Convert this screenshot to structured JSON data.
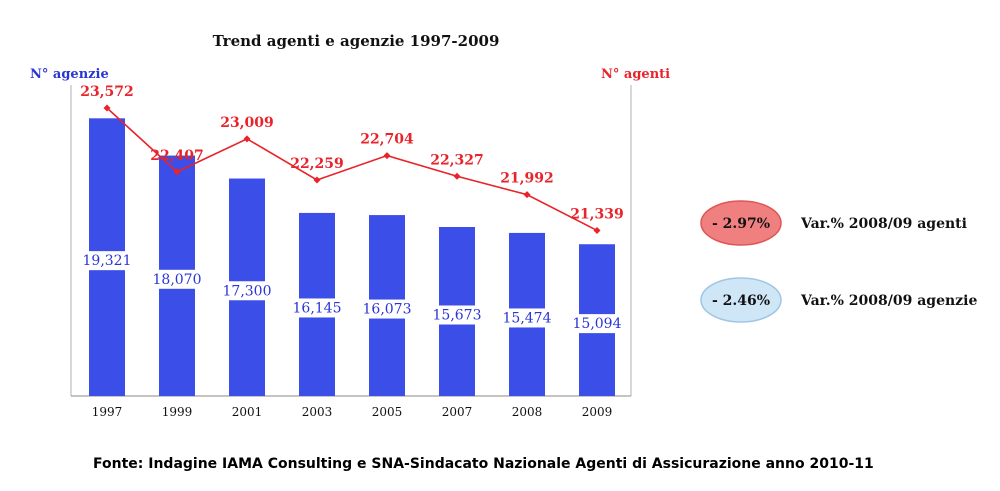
{
  "chart_data": {
    "type": "bar",
    "title": "Trend agenti e agenzie 1997-2009",
    "ylabel_left": "N° agenzie",
    "ylabel_right": "N° agenti",
    "categories": [
      "1997",
      "1999",
      "2001",
      "2003",
      "2005",
      "2007",
      "2008",
      "2009"
    ],
    "series": [
      {
        "name": "N° agenzie",
        "type": "bar",
        "axis": "left",
        "color": "#3b4ee8",
        "values": [
          19321,
          18070,
          17300,
          16145,
          16073,
          15673,
          15474,
          15094
        ],
        "labels": [
          "19,321",
          "18,070",
          "17,300",
          "16,145",
          "16,073",
          "15,673",
          "15,474",
          "15,094"
        ]
      },
      {
        "name": "N° agenti",
        "type": "line",
        "axis": "right",
        "color": "#e8232a",
        "values": [
          23572,
          22407,
          23009,
          22259,
          22704,
          22327,
          21992,
          21339
        ],
        "labels": [
          "23,572",
          "22,407",
          "23,009",
          "22,259",
          "22,704",
          "22,327",
          "21,992",
          "21,339"
        ]
      }
    ],
    "grid": false,
    "legend": "none"
  },
  "badges": [
    {
      "value": "- 2.97%",
      "caption": "Var.% 2008/09 agenti",
      "fill": "#f08080",
      "stroke": "#e05555"
    },
    {
      "value": "- 2.46%",
      "caption": "Var.% 2008/09 agenzie",
      "fill": "#cfe6f7",
      "stroke": "#9fc6e6"
    }
  ],
  "source": "Fonte: Indagine IAMA Consulting e SNA-Sindacato Nazionale Agenti di Assicurazione anno 2010-11"
}
